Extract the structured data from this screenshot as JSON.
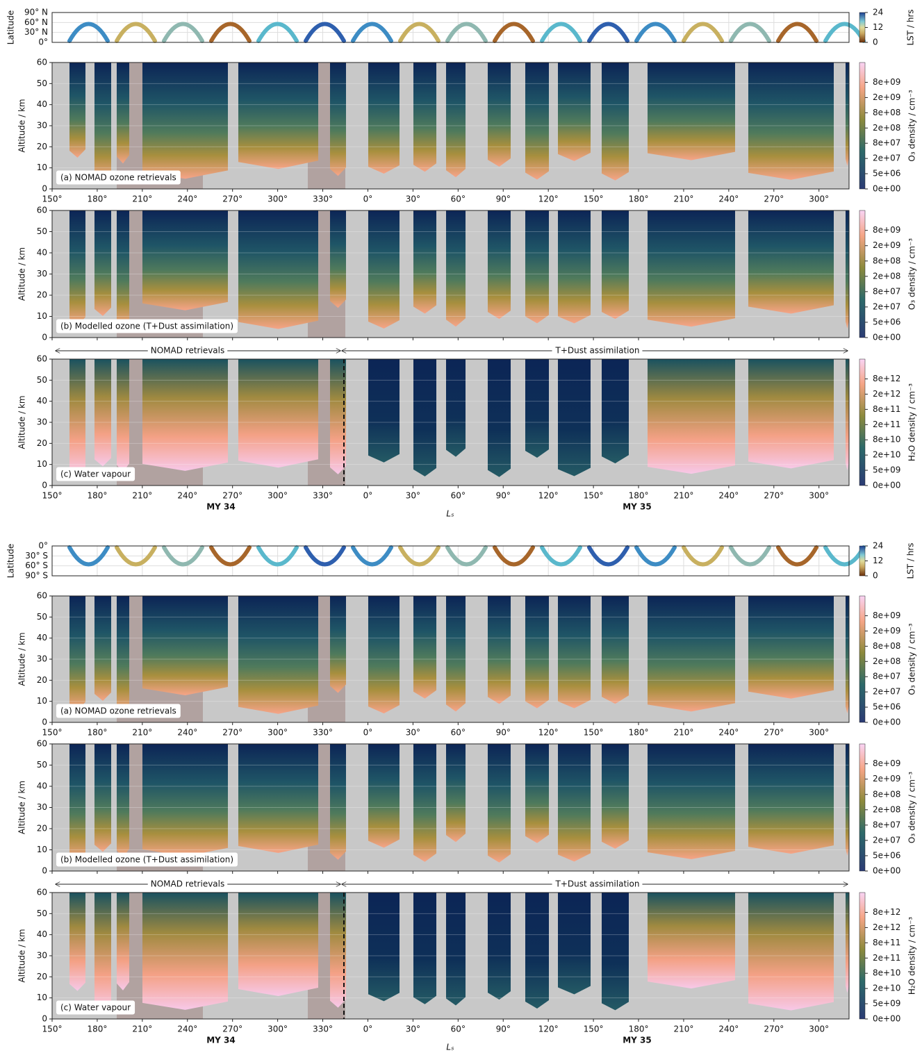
{
  "chart_data": [
    {
      "type": "heatmap",
      "xlim": [
        150,
        680
      ],
      "xticks": [
        {
          "value": 150,
          "label": "150°"
        },
        {
          "value": 180,
          "label": "180°"
        },
        {
          "value": 210,
          "label": "210°"
        },
        {
          "value": 240,
          "label": "240°"
        },
        {
          "value": 270,
          "label": "270°"
        },
        {
          "value": 300,
          "label": "300°"
        },
        {
          "value": 330,
          "label": "330°"
        },
        {
          "value": 360,
          "label": "0°"
        },
        {
          "value": 390,
          "label": "30°"
        },
        {
          "value": 420,
          "label": "60°"
        },
        {
          "value": 450,
          "label": "90°"
        },
        {
          "value": 480,
          "label": "120°"
        },
        {
          "value": 510,
          "label": "150°"
        },
        {
          "value": 540,
          "label": "180°"
        },
        {
          "value": 570,
          "label": "210°"
        },
        {
          "value": 600,
          "label": "240°"
        },
        {
          "value": 630,
          "label": "270°"
        },
        {
          "value": 660,
          "label": "300°"
        }
      ],
      "xlabel": "Lₛ",
      "years": [
        "MY 34",
        "MY 35"
      ],
      "annotations": [
        "NOMAD retrievals",
        "T+Dust assimilation"
      ],
      "latitude_panel": {
        "ylabel": "Latitude",
        "ylim": [
          0,
          90
        ],
        "yticks": [
          {
            "value": 90,
            "label": "90° N"
          },
          {
            "value": 60,
            "label": "60° N"
          },
          {
            "value": 30,
            "label": "30° N"
          },
          {
            "value": 0,
            "label": "0°"
          }
        ],
        "colorbar": {
          "label": "LST / hrs",
          "lim": [
            0,
            24
          ],
          "ticks": [
            0,
            12,
            24
          ]
        }
      },
      "panels": [
        {
          "label": "(a) NOMAD ozone retrievals",
          "ylabel": "Altitude / km",
          "ylim": [
            0,
            60
          ],
          "yticks": [
            0,
            10,
            20,
            30,
            40,
            50,
            60
          ],
          "colorbar": {
            "label": "O₃ density / cm⁻³",
            "ticks": [
              {
                "value": 0,
                "label": "0e+00"
              },
              {
                "value": 5000000.0,
                "label": "5e+06"
              },
              {
                "value": 20000000.0,
                "label": "2e+07"
              },
              {
                "value": 80000000.0,
                "label": "8e+07"
              },
              {
                "value": 200000000.0,
                "label": "2e+08"
              },
              {
                "value": 800000000.0,
                "label": "8e+08"
              },
              {
                "value": 2000000000.0,
                "label": "2e+09"
              },
              {
                "value": 8000000000.0,
                "label": "8e+09"
              }
            ]
          }
        },
        {
          "label": "(b) Modelled ozone (T+Dust assimilation)",
          "ylabel": "Altitude / km",
          "ylim": [
            0,
            60
          ],
          "yticks": [
            0,
            10,
            20,
            30,
            40,
            50,
            60
          ],
          "colorbar": {
            "label": "O₃ density / cm⁻³",
            "ticks": [
              {
                "value": 0,
                "label": "0e+00"
              },
              {
                "value": 5000000.0,
                "label": "5e+06"
              },
              {
                "value": 20000000.0,
                "label": "2e+07"
              },
              {
                "value": 80000000.0,
                "label": "8e+07"
              },
              {
                "value": 200000000.0,
                "label": "2e+08"
              },
              {
                "value": 800000000.0,
                "label": "8e+08"
              },
              {
                "value": 2000000000.0,
                "label": "2e+09"
              },
              {
                "value": 8000000000.0,
                "label": "8e+09"
              }
            ]
          }
        },
        {
          "label": "(c) Water vapour",
          "ylabel": "Altitude / km",
          "ylim": [
            0,
            60
          ],
          "yticks": [
            0,
            10,
            20,
            30,
            40,
            50,
            60
          ],
          "colorbar": {
            "label": "H₂O density / cm⁻³",
            "ticks": [
              {
                "value": 0,
                "label": "0e+00"
              },
              {
                "value": 5000000000.0,
                "label": "5e+09"
              },
              {
                "value": 20000000000.0,
                "label": "2e+10"
              },
              {
                "value": 80000000000.0,
                "label": "8e+10"
              },
              {
                "value": 200000000000.0,
                "label": "2e+11"
              },
              {
                "value": 800000000000.0,
                "label": "8e+11"
              },
              {
                "value": 2000000000000.0,
                "label": "2e+12"
              },
              {
                "value": 8000000000000.0,
                "label": "8e+12"
              }
            ]
          }
        }
      ]
    },
    {
      "type": "heatmap",
      "xlim": [
        150,
        680
      ],
      "xticks": [
        {
          "value": 150,
          "label": "150°"
        },
        {
          "value": 180,
          "label": "180°"
        },
        {
          "value": 210,
          "label": "210°"
        },
        {
          "value": 240,
          "label": "240°"
        },
        {
          "value": 270,
          "label": "270°"
        },
        {
          "value": 300,
          "label": "300°"
        },
        {
          "value": 330,
          "label": "330°"
        },
        {
          "value": 360,
          "label": "0°"
        },
        {
          "value": 390,
          "label": "30°"
        },
        {
          "value": 420,
          "label": "60°"
        },
        {
          "value": 450,
          "label": "90°"
        },
        {
          "value": 480,
          "label": "120°"
        },
        {
          "value": 510,
          "label": "150°"
        },
        {
          "value": 540,
          "label": "180°"
        },
        {
          "value": 570,
          "label": "210°"
        },
        {
          "value": 600,
          "label": "240°"
        },
        {
          "value": 630,
          "label": "270°"
        },
        {
          "value": 660,
          "label": "300°"
        }
      ],
      "xlabel": "Lₛ",
      "years": [
        "MY 34",
        "MY 35"
      ],
      "annotations": [
        "NOMAD retrievals",
        "T+Dust assimilation"
      ],
      "latitude_panel": {
        "ylabel": "Latitude",
        "ylim": [
          -90,
          0
        ],
        "yticks": [
          {
            "value": 0,
            "label": "0°"
          },
          {
            "value": -30,
            "label": "30° S"
          },
          {
            "value": -60,
            "label": "60° S"
          },
          {
            "value": -90,
            "label": "90° S"
          }
        ],
        "colorbar": {
          "label": "LST / hrs",
          "lim": [
            0,
            24
          ],
          "ticks": [
            0,
            12,
            24
          ]
        }
      },
      "panels": [
        {
          "label": "(a) NOMAD ozone retrievals",
          "ylabel": "Altitude / km",
          "ylim": [
            0,
            60
          ],
          "yticks": [
            0,
            10,
            20,
            30,
            40,
            50,
            60
          ],
          "colorbar": {
            "label": "O₃ density / cm⁻³",
            "ticks": [
              {
                "value": 0,
                "label": "0e+00"
              },
              {
                "value": 5000000.0,
                "label": "5e+06"
              },
              {
                "value": 20000000.0,
                "label": "2e+07"
              },
              {
                "value": 80000000.0,
                "label": "8e+07"
              },
              {
                "value": 200000000.0,
                "label": "2e+08"
              },
              {
                "value": 800000000.0,
                "label": "8e+08"
              },
              {
                "value": 2000000000.0,
                "label": "2e+09"
              },
              {
                "value": 8000000000.0,
                "label": "8e+09"
              }
            ]
          }
        },
        {
          "label": "(b) Modelled ozone (T+Dust assimilation)",
          "ylabel": "Altitude / km",
          "ylim": [
            0,
            60
          ],
          "yticks": [
            0,
            10,
            20,
            30,
            40,
            50,
            60
          ],
          "colorbar": {
            "label": "O₃ density / cm⁻³",
            "ticks": [
              {
                "value": 0,
                "label": "0e+00"
              },
              {
                "value": 5000000.0,
                "label": "5e+06"
              },
              {
                "value": 20000000.0,
                "label": "2e+07"
              },
              {
                "value": 80000000.0,
                "label": "8e+07"
              },
              {
                "value": 200000000.0,
                "label": "2e+08"
              },
              {
                "value": 800000000.0,
                "label": "8e+08"
              },
              {
                "value": 2000000000.0,
                "label": "2e+09"
              },
              {
                "value": 8000000000.0,
                "label": "8e+09"
              }
            ]
          }
        },
        {
          "label": "(c) Water vapour",
          "ylabel": "Altitude / km",
          "ylim": [
            0,
            60
          ],
          "yticks": [
            0,
            10,
            20,
            30,
            40,
            50,
            60
          ],
          "colorbar": {
            "label": "H₂O density / cm⁻³",
            "ticks": [
              {
                "value": 0,
                "label": "0e+00"
              },
              {
                "value": 5000000000.0,
                "label": "5e+09"
              },
              {
                "value": 20000000000.0,
                "label": "2e+10"
              },
              {
                "value": 80000000000.0,
                "label": "8e+10"
              },
              {
                "value": 200000000000.0,
                "label": "2e+11"
              },
              {
                "value": 800000000000.0,
                "label": "8e+11"
              },
              {
                "value": 2000000000000.0,
                "label": "2e+12"
              },
              {
                "value": 8000000000000.0,
                "label": "8e+12"
              }
            ]
          }
        }
      ]
    }
  ]
}
